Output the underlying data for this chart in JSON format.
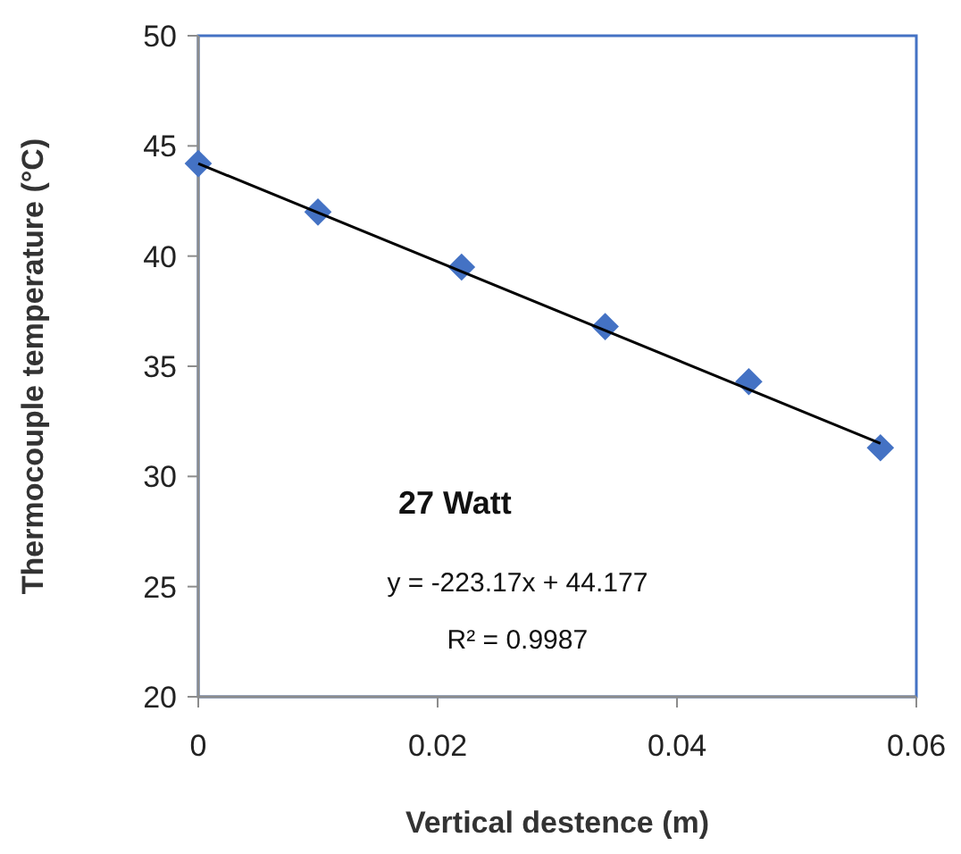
{
  "chart_data": {
    "type": "scatter",
    "xlabel": "Vertical destence (m)",
    "ylabel": "Thermocouple temperature (°C)",
    "x": [
      0,
      0.01,
      0.022,
      0.034,
      0.046,
      0.057
    ],
    "series": [
      {
        "color": "#4472c4",
        "marker": "diamond",
        "values": [
          44.2,
          42.0,
          39.5,
          36.8,
          34.3,
          31.3
        ]
      },
      {
        "type": "line",
        "color": "#000000",
        "marker": "none",
        "x": [
          0,
          0.057
        ],
        "values": [
          44.2,
          31.5
        ]
      }
    ],
    "xlim": [
      0,
      0.06
    ],
    "ylim": [
      20,
      50
    ],
    "xticks": [
      0,
      0.02,
      0.04,
      0.06
    ],
    "yticks": [
      20,
      25,
      30,
      35,
      40,
      45,
      50
    ],
    "grid": false,
    "annotations": [
      "27 Watt",
      "y = -223.17x + 44.177",
      "R² = 0.9987"
    ]
  }
}
